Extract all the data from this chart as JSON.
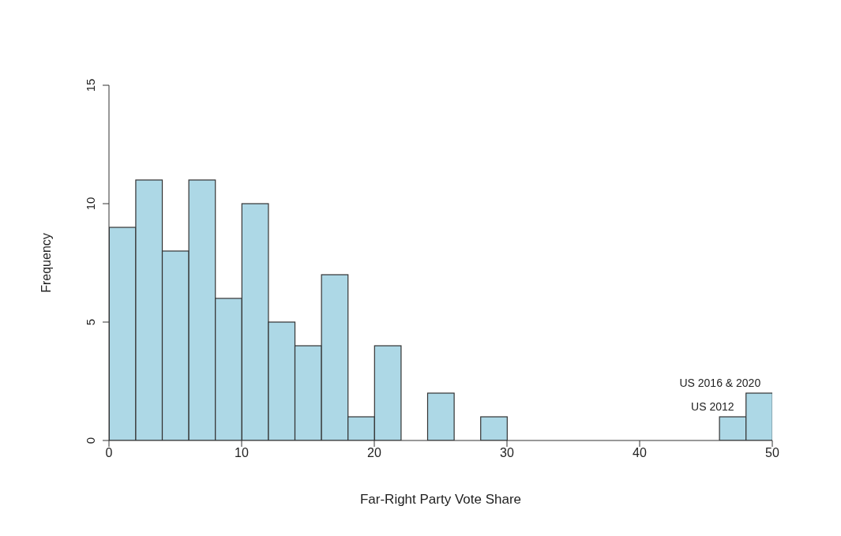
{
  "chart_data": {
    "type": "histogram",
    "xlabel": "Far-Right Party Vote Share",
    "ylabel": "Frequency",
    "bins": [
      0,
      2,
      4,
      6,
      8,
      10,
      12,
      14,
      16,
      18,
      20,
      22,
      24,
      26,
      28,
      30,
      32,
      34,
      36,
      38,
      40,
      42,
      44,
      46,
      48,
      50
    ],
    "values": [
      9,
      11,
      8,
      11,
      6,
      10,
      5,
      4,
      7,
      1,
      4,
      0,
      2,
      0,
      1,
      0,
      0,
      0,
      0,
      0,
      0,
      0,
      0,
      1,
      2
    ],
    "color": "#add8e6",
    "xlim": [
      0,
      50
    ],
    "xticks": [
      0,
      10,
      20,
      30,
      40,
      50
    ],
    "ylim": [
      0,
      15
    ],
    "yticks": [
      0,
      5,
      10,
      15
    ],
    "grid": false,
    "legend": false,
    "annotations": [
      {
        "text": "US 2016 & 2020",
        "x": 49,
        "y": 2
      },
      {
        "text": "US 2012",
        "x": 47,
        "y": 1
      }
    ]
  }
}
